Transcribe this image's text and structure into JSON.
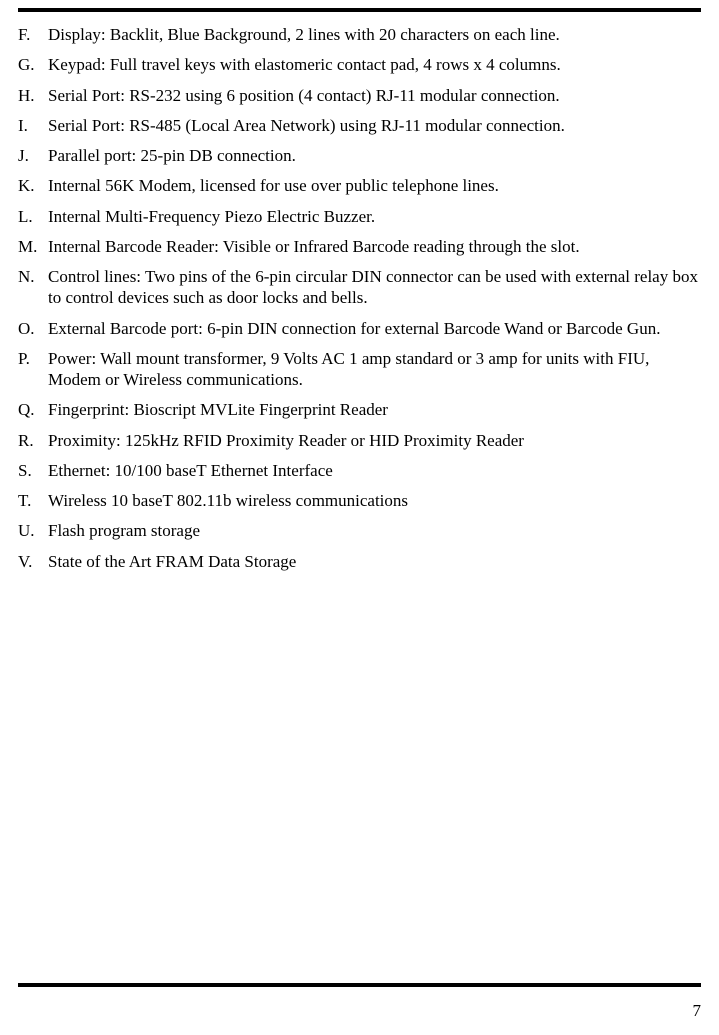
{
  "page": {
    "number": "7",
    "rule_color": "#000000",
    "background_color": "#ffffff",
    "text_color": "#000000",
    "font_family": "Times New Roman",
    "font_size_pt": 12
  },
  "list": {
    "items": [
      {
        "marker": "F.",
        "text": "Display: Backlit, Blue Background, 2 lines with 20 characters on each line."
      },
      {
        "marker": "G.",
        "text": "Keypad: Full travel keys with elastomeric contact pad, 4 rows x 4 columns."
      },
      {
        "marker": "H.",
        "text": "Serial Port: RS-232 using 6 position (4 contact) RJ-11 modular connection."
      },
      {
        "marker": "I.",
        "text": "Serial Port: RS-485 (Local Area Network) using RJ-11 modular connection."
      },
      {
        "marker": "J.",
        "text": "Parallel port: 25-pin DB connection."
      },
      {
        "marker": "K.",
        "text": "Internal 56K Modem, licensed for use over public telephone lines."
      },
      {
        "marker": "L.",
        "text": "Internal Multi-Frequency Piezo Electric Buzzer."
      },
      {
        "marker": "M.",
        "text": "Internal Barcode Reader: Visible or Infrared Barcode reading through the slot."
      },
      {
        "marker": "N.",
        "text": "Control lines: Two pins of the 6-pin circular DIN connector can be used with external relay box to control devices such as door locks and bells."
      },
      {
        "marker": "O.",
        "text": "External Barcode port: 6-pin DIN connection for external Barcode Wand or Barcode Gun."
      },
      {
        "marker": "P.",
        "text": "Power: Wall mount transformer, 9 Volts AC 1 amp standard or 3 amp for units with FIU, Modem or Wireless communications."
      },
      {
        "marker": "Q.",
        "text": "Fingerprint: Bioscript MVLite Fingerprint Reader"
      },
      {
        "marker": "R.",
        "text": "Proximity: 125kHz RFID Proximity Reader or HID Proximity Reader"
      },
      {
        "marker": "S.",
        "text": "Ethernet: 10/100 baseT Ethernet Interface"
      },
      {
        "marker": "T.",
        "text": "Wireless 10 baseT 802.11b wireless communications"
      },
      {
        "marker": "U.",
        "text": "Flash program storage"
      },
      {
        "marker": "V.",
        "text": "State of the Art FRAM Data Storage"
      }
    ]
  }
}
